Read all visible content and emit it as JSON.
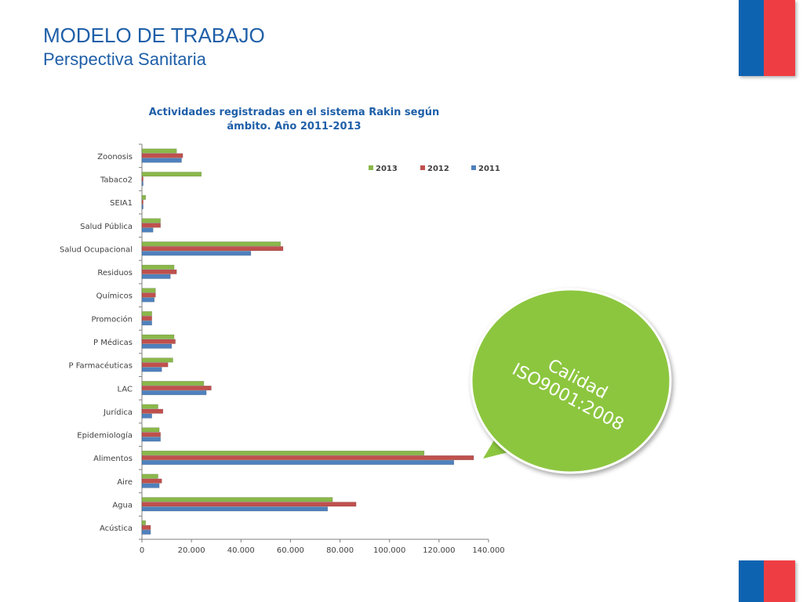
{
  "slide": {
    "title": "MODELO DE TRABAJO",
    "subtitle": "Perspectiva Sanitaria"
  },
  "colors": {
    "title": "#1f5fa8",
    "s2013": "#8ab84a",
    "s2012": "#c0504d",
    "s2011": "#4f81bd",
    "bubble": "#8cc63f",
    "flag_blue": "#0e63b1",
    "flag_red": "#ef3e43"
  },
  "callout": {
    "line1": "Calidad",
    "line2": "ISO9001:2008"
  },
  "chart_data": {
    "type": "bar",
    "orientation": "horizontal",
    "title_line1": "Actividades registradas en el sistema Rakin  según",
    "title_line2": "ámbito. Año 2011-2013",
    "categories": [
      "Zoonosis",
      "Tabaco2",
      "SEIA1",
      "Salud Pública",
      "Salud Ocupacional",
      "Residuos",
      "Químicos",
      "Promoción",
      "P Médicas",
      "P Farmacéuticas",
      "LAC",
      "Jurídica",
      "Epidemiología",
      "Alimentos",
      "Aire",
      "Agua",
      "Acústica"
    ],
    "series": [
      {
        "name": "2013",
        "values": [
          14000,
          24000,
          1500,
          7500,
          56000,
          13000,
          5500,
          4000,
          13000,
          12500,
          25000,
          6500,
          7000,
          114000,
          6500,
          77000,
          1500
        ]
      },
      {
        "name": "2012",
        "values": [
          16500,
          500,
          500,
          7500,
          57000,
          14000,
          5500,
          4000,
          13500,
          10500,
          28000,
          8500,
          7500,
          134000,
          8000,
          86500,
          3500
        ]
      },
      {
        "name": "2011",
        "values": [
          16000,
          500,
          500,
          4500,
          44000,
          11500,
          5000,
          4000,
          12000,
          8000,
          26000,
          4000,
          7500,
          126000,
          7000,
          75000,
          3500
        ]
      }
    ],
    "xticks": [
      "0",
      "20.000",
      "40.000",
      "60.000",
      "80.000",
      "100.000",
      "120.000",
      "140.000"
    ],
    "xlim": [
      0,
      140000
    ],
    "legend_position": "top-right",
    "grid": false
  }
}
